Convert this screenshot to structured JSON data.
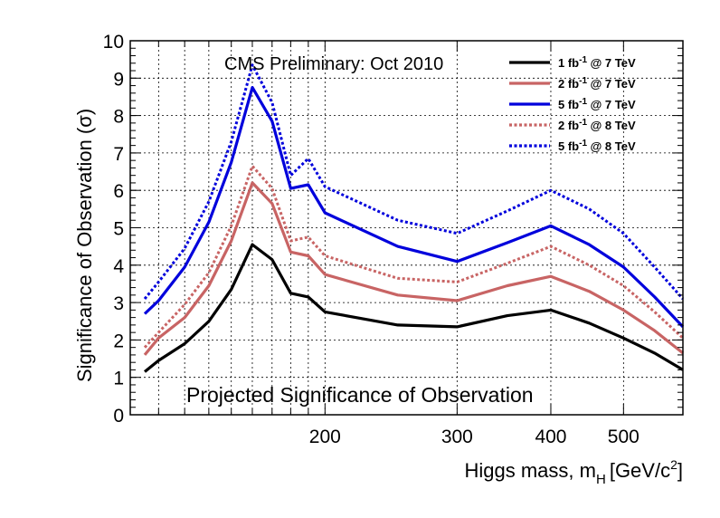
{
  "chart_data": {
    "type": "line",
    "annotation": "CMS Preliminary: Oct 2010",
    "footer_text": "Projected Significance of Observation",
    "xlabel": "Higgs mass, m",
    "xlabel_sub": "H",
    "xlabel_unit": "[GeV/c",
    "xlabel_unit_sup": "2",
    "xlabel_unit_end": "]",
    "ylabel": "Significance of Observation (σ)",
    "xscale": "log",
    "xlim": [
      110,
      600
    ],
    "ylim": [
      0,
      10
    ],
    "grid": true,
    "legend_position": "top-right",
    "x_ticks": [
      200,
      300,
      400,
      500
    ],
    "y_ticks": [
      0,
      1,
      2,
      3,
      4,
      5,
      6,
      7,
      8,
      9,
      10
    ],
    "x": [
      115,
      120,
      130,
      140,
      150,
      160,
      170,
      180,
      190,
      200,
      250,
      300,
      350,
      400,
      450,
      500,
      550,
      600
    ],
    "series": [
      {
        "name": "1 fb⁻¹ @ 7 TeV",
        "label_main": "1 fb",
        "label_sup": "-1",
        "label_rest": " @ 7 TeV",
        "color": "#000000",
        "dash": "solid",
        "values": [
          1.15,
          1.45,
          1.9,
          2.5,
          3.35,
          4.55,
          4.15,
          3.25,
          3.15,
          2.75,
          2.4,
          2.35,
          2.65,
          2.8,
          2.45,
          2.05,
          1.65,
          1.2
        ]
      },
      {
        "name": "2 fb⁻¹ @ 7 TeV",
        "label_main": "2 fb",
        "label_sup": "-1",
        "label_rest": " @ 7 TeV",
        "color": "#c86464",
        "dash": "solid",
        "values": [
          1.6,
          2.05,
          2.6,
          3.45,
          4.65,
          6.2,
          5.65,
          4.35,
          4.25,
          3.75,
          3.2,
          3.05,
          3.45,
          3.7,
          3.3,
          2.8,
          2.25,
          1.65
        ]
      },
      {
        "name": "5 fb⁻¹ @ 7 TeV",
        "label_main": "5 fb",
        "label_sup": "-1",
        "label_rest": " @ 7 TeV",
        "color": "#0000dc",
        "dash": "solid",
        "values": [
          2.7,
          3.05,
          3.95,
          5.15,
          6.75,
          8.75,
          7.85,
          6.05,
          6.15,
          5.4,
          4.5,
          4.1,
          4.6,
          5.05,
          4.55,
          3.95,
          3.15,
          2.35
        ]
      },
      {
        "name": "2 fb⁻¹ @ 8 TeV",
        "label_main": "2 fb",
        "label_sup": "-1",
        "label_rest": " @ 8 TeV",
        "color": "#c86464",
        "dash": "dotted",
        "values": [
          1.8,
          2.2,
          2.95,
          3.8,
          5.05,
          6.65,
          6.05,
          4.65,
          4.75,
          4.25,
          3.65,
          3.55,
          4.05,
          4.5,
          4.0,
          3.45,
          2.75,
          2.05
        ]
      },
      {
        "name": "5 fb⁻¹ @ 8 TeV",
        "label_main": "5 fb",
        "label_sup": "-1",
        "label_rest": " @ 8 TeV",
        "color": "#0000dc",
        "dash": "dotted",
        "values": [
          3.1,
          3.55,
          4.45,
          5.7,
          7.3,
          9.35,
          8.35,
          6.4,
          6.85,
          6.1,
          5.2,
          4.85,
          5.45,
          6.0,
          5.5,
          4.85,
          3.95,
          3.1
        ]
      }
    ]
  }
}
